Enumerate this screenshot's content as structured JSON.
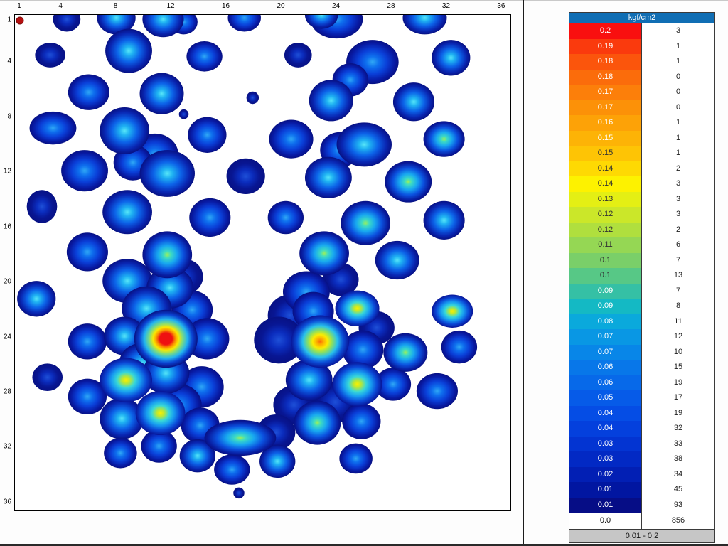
{
  "chart_data": {
    "type": "heatmap",
    "unit": "kgf/cm2",
    "pressure_range_label": "0.01 - 0.2",
    "grid_size": [
      36,
      36
    ],
    "x_ticks": [
      1,
      4,
      8,
      12,
      16,
      20,
      24,
      28,
      32,
      36
    ],
    "y_ticks": [
      1,
      4,
      8,
      12,
      16,
      20,
      24,
      28,
      32,
      36
    ],
    "levels": [
      {
        "value": "0.2",
        "count": "3",
        "bg": "#F90F0F",
        "fg": "#FFFFFF"
      },
      {
        "value": "0.19",
        "count": "1",
        "bg": "#FA3A0D",
        "fg": "#FFFFFF"
      },
      {
        "value": "0.18",
        "count": "1",
        "bg": "#FB550C",
        "fg": "#FFFFFF"
      },
      {
        "value": "0.18",
        "count": "0",
        "bg": "#FB6C0B",
        "fg": "#FFFFFF"
      },
      {
        "value": "0.17",
        "count": "0",
        "bg": "#FC7F0A",
        "fg": "#FFFFFF"
      },
      {
        "value": "0.17",
        "count": "0",
        "bg": "#FC9108",
        "fg": "#FFFFFF"
      },
      {
        "value": "0.16",
        "count": "1",
        "bg": "#FDA207",
        "fg": "#FFFFFF"
      },
      {
        "value": "0.15",
        "count": "1",
        "bg": "#FDB306",
        "fg": "#FFFFFF"
      },
      {
        "value": "0.15",
        "count": "1",
        "bg": "#FEC405",
        "fg": "#333333"
      },
      {
        "value": "0.14",
        "count": "2",
        "bg": "#FED903",
        "fg": "#333333"
      },
      {
        "value": "0.14",
        "count": "3",
        "bg": "#FDF200",
        "fg": "#333333"
      },
      {
        "value": "0.13",
        "count": "3",
        "bg": "#E4EF14",
        "fg": "#333333"
      },
      {
        "value": "0.12",
        "count": "3",
        "bg": "#CBE729",
        "fg": "#333333"
      },
      {
        "value": "0.12",
        "count": "2",
        "bg": "#B0DF3E",
        "fg": "#333333"
      },
      {
        "value": "0.11",
        "count": "6",
        "bg": "#95D754",
        "fg": "#333333"
      },
      {
        "value": "0.1",
        "count": "7",
        "bg": "#7ACF69",
        "fg": "#333333"
      },
      {
        "value": "0.1",
        "count": "13",
        "bg": "#57C886",
        "fg": "#333333"
      },
      {
        "value": "0.09",
        "count": "7",
        "bg": "#35C0A5",
        "fg": "#FFFFFF"
      },
      {
        "value": "0.09",
        "count": "8",
        "bg": "#14B9C4",
        "fg": "#FFFFFF"
      },
      {
        "value": "0.08",
        "count": "11",
        "bg": "#0AA9DC",
        "fg": "#FFFFFF"
      },
      {
        "value": "0.07",
        "count": "12",
        "bg": "#0997E4",
        "fg": "#FFFFFF"
      },
      {
        "value": "0.07",
        "count": "10",
        "bg": "#0886E8",
        "fg": "#FFFFFF"
      },
      {
        "value": "0.06",
        "count": "15",
        "bg": "#0877E9",
        "fg": "#FFFFFF"
      },
      {
        "value": "0.06",
        "count": "19",
        "bg": "#0769E9",
        "fg": "#FFFFFF"
      },
      {
        "value": "0.05",
        "count": "17",
        "bg": "#065BE8",
        "fg": "#FFFFFF"
      },
      {
        "value": "0.04",
        "count": "19",
        "bg": "#054DE5",
        "fg": "#FFFFFF"
      },
      {
        "value": "0.04",
        "count": "32",
        "bg": "#0440DD",
        "fg": "#FFFFFF"
      },
      {
        "value": "0.03",
        "count": "33",
        "bg": "#0334D2",
        "fg": "#FFFFFF"
      },
      {
        "value": "0.03",
        "count": "38",
        "bg": "#0229C4",
        "fg": "#FFFFFF"
      },
      {
        "value": "0.02",
        "count": "34",
        "bg": "#021FB4",
        "fg": "#FFFFFF"
      },
      {
        "value": "0.01",
        "count": "45",
        "bg": "#0116A1",
        "fg": "#FFFFFF"
      },
      {
        "value": "0.01",
        "count": "93",
        "bg": "#060D86",
        "fg": "#FFFFFF"
      },
      {
        "value": "0.0",
        "count": "856",
        "bg": "#FFFFFF",
        "fg": "#111111"
      }
    ],
    "marker_cell": {
      "c": 1,
      "r": 1,
      "color": "#B61010",
      "ring": "#7A0C0C"
    },
    "hotspots": [
      {
        "c": 4.4,
        "r": 0.9,
        "rx": 1.0,
        "ry": 0.9,
        "t": "low"
      },
      {
        "c": 8.0,
        "r": 0.8,
        "rx": 1.4,
        "ry": 1.2,
        "t": "cyan"
      },
      {
        "c": 11.4,
        "r": 0.9,
        "rx": 1.5,
        "ry": 1.3,
        "t": "cyan"
      },
      {
        "c": 12.9,
        "r": 1.1,
        "rx": 1.0,
        "ry": 0.9,
        "t": "blue"
      },
      {
        "c": 17.3,
        "r": 0.8,
        "rx": 1.2,
        "ry": 1.0,
        "t": "blue"
      },
      {
        "c": 24.0,
        "r": 0.9,
        "rx": 1.9,
        "ry": 1.4,
        "t": "blue"
      },
      {
        "c": 22.9,
        "r": 0.6,
        "rx": 1.2,
        "ry": 1.0,
        "t": "cyan"
      },
      {
        "c": 30.4,
        "r": 0.8,
        "rx": 1.6,
        "ry": 1.2,
        "t": "cyan"
      },
      {
        "c": 3.2,
        "r": 3.5,
        "rx": 1.1,
        "ry": 0.9,
        "t": "low"
      },
      {
        "c": 8.9,
        "r": 3.2,
        "rx": 1.7,
        "ry": 1.6,
        "t": "cyan"
      },
      {
        "c": 14.4,
        "r": 3.6,
        "rx": 1.3,
        "ry": 1.1,
        "t": "blue"
      },
      {
        "c": 21.2,
        "r": 3.5,
        "rx": 1.0,
        "ry": 0.9,
        "t": "low"
      },
      {
        "c": 26.6,
        "r": 4.0,
        "rx": 1.9,
        "ry": 1.6,
        "t": "blue"
      },
      {
        "c": 25.0,
        "r": 5.3,
        "rx": 1.3,
        "ry": 1.2,
        "t": "blue"
      },
      {
        "c": 32.3,
        "r": 3.7,
        "rx": 1.4,
        "ry": 1.3,
        "t": "cyan"
      },
      {
        "c": 6.0,
        "r": 6.2,
        "rx": 1.5,
        "ry": 1.3,
        "t": "blue"
      },
      {
        "c": 11.3,
        "r": 6.3,
        "rx": 1.6,
        "ry": 1.5,
        "t": "cyan"
      },
      {
        "c": 17.9,
        "r": 6.6,
        "rx": 0.45,
        "ry": 0.45,
        "t": "low"
      },
      {
        "c": 23.6,
        "r": 6.8,
        "rx": 1.6,
        "ry": 1.5,
        "t": "cyan"
      },
      {
        "c": 29.6,
        "r": 6.9,
        "rx": 1.5,
        "ry": 1.4,
        "t": "cyan"
      },
      {
        "c": 12.9,
        "r": 7.8,
        "rx": 0.35,
        "ry": 0.35,
        "t": "low"
      },
      {
        "c": 3.4,
        "r": 8.8,
        "rx": 1.7,
        "ry": 1.2,
        "t": "blue"
      },
      {
        "c": 8.6,
        "r": 9.0,
        "rx": 1.8,
        "ry": 1.7,
        "t": "cyan"
      },
      {
        "c": 10.8,
        "r": 10.7,
        "rx": 1.7,
        "ry": 1.5,
        "t": "blue"
      },
      {
        "c": 14.6,
        "r": 9.3,
        "rx": 1.4,
        "ry": 1.3,
        "t": "blue"
      },
      {
        "c": 20.7,
        "r": 9.6,
        "rx": 1.6,
        "ry": 1.4,
        "t": "blue"
      },
      {
        "c": 24.2,
        "r": 10.4,
        "rx": 1.4,
        "ry": 1.3,
        "t": "blue"
      },
      {
        "c": 26.0,
        "r": 10.0,
        "rx": 2.0,
        "ry": 1.6,
        "t": "cyan"
      },
      {
        "c": 31.8,
        "r": 9.6,
        "rx": 1.5,
        "ry": 1.3,
        "t": "green"
      },
      {
        "c": 5.7,
        "r": 11.9,
        "rx": 1.7,
        "ry": 1.5,
        "t": "blue"
      },
      {
        "c": 9.2,
        "r": 11.3,
        "rx": 1.4,
        "ry": 1.3,
        "t": "blue"
      },
      {
        "c": 11.7,
        "r": 12.1,
        "rx": 2.0,
        "ry": 1.7,
        "t": "cyan"
      },
      {
        "c": 17.4,
        "r": 12.3,
        "rx": 1.4,
        "ry": 1.3,
        "t": "low"
      },
      {
        "c": 23.4,
        "r": 12.4,
        "rx": 1.7,
        "ry": 1.5,
        "t": "cyan"
      },
      {
        "c": 29.2,
        "r": 12.7,
        "rx": 1.7,
        "ry": 1.5,
        "t": "green"
      },
      {
        "c": 2.6,
        "r": 14.5,
        "rx": 1.1,
        "ry": 1.2,
        "t": "low"
      },
      {
        "c": 8.8,
        "r": 14.9,
        "rx": 1.8,
        "ry": 1.6,
        "t": "cyan"
      },
      {
        "c": 14.8,
        "r": 15.3,
        "rx": 1.5,
        "ry": 1.4,
        "t": "blue"
      },
      {
        "c": 20.3,
        "r": 15.3,
        "rx": 1.3,
        "ry": 1.2,
        "t": "blue"
      },
      {
        "c": 26.1,
        "r": 15.7,
        "rx": 1.8,
        "ry": 1.6,
        "t": "green"
      },
      {
        "c": 31.8,
        "r": 15.5,
        "rx": 1.5,
        "ry": 1.4,
        "t": "cyan"
      },
      {
        "c": 5.9,
        "r": 17.8,
        "rx": 1.5,
        "ry": 1.4,
        "t": "blue"
      },
      {
        "c": 11.7,
        "r": 18.0,
        "rx": 1.8,
        "ry": 1.7,
        "t": "green"
      },
      {
        "c": 8.8,
        "r": 19.9,
        "rx": 1.8,
        "ry": 1.6,
        "t": "cyan"
      },
      {
        "c": 23.1,
        "r": 17.9,
        "rx": 1.8,
        "ry": 1.6,
        "t": "green"
      },
      {
        "c": 28.4,
        "r": 18.4,
        "rx": 1.6,
        "ry": 1.4,
        "t": "cyan"
      },
      {
        "c": 12.9,
        "r": 19.6,
        "rx": 1.4,
        "ry": 1.3,
        "t": "low"
      },
      {
        "c": 2.2,
        "r": 21.2,
        "rx": 1.4,
        "ry": 1.3,
        "t": "cyan"
      },
      {
        "c": 11.9,
        "r": 20.4,
        "rx": 1.7,
        "ry": 1.5,
        "t": "cyan"
      },
      {
        "c": 10.2,
        "r": 21.9,
        "rx": 1.8,
        "ry": 1.6,
        "t": "cyan"
      },
      {
        "c": 13.5,
        "r": 22.0,
        "rx": 1.5,
        "ry": 1.4,
        "t": "blue"
      },
      {
        "c": 21.8,
        "r": 20.7,
        "rx": 1.7,
        "ry": 1.5,
        "t": "blue"
      },
      {
        "c": 20.6,
        "r": 22.4,
        "rx": 1.6,
        "ry": 1.5,
        "t": "low"
      },
      {
        "c": 22.3,
        "r": 22.1,
        "rx": 1.5,
        "ry": 1.4,
        "t": "blue"
      },
      {
        "c": 25.5,
        "r": 21.9,
        "rx": 1.6,
        "ry": 1.3,
        "t": "yellow"
      },
      {
        "c": 32.4,
        "r": 22.1,
        "rx": 1.5,
        "ry": 1.2,
        "t": "yellow"
      },
      {
        "c": 24.3,
        "r": 19.8,
        "rx": 1.3,
        "ry": 1.2,
        "t": "low"
      },
      {
        "c": 11.6,
        "r": 24.1,
        "rx": 2.3,
        "ry": 2.1,
        "t": "red"
      },
      {
        "c": 8.6,
        "r": 23.9,
        "rx": 1.5,
        "ry": 1.4,
        "t": "cyan"
      },
      {
        "c": 5.9,
        "r": 24.3,
        "rx": 1.4,
        "ry": 1.3,
        "t": "blue"
      },
      {
        "c": 14.6,
        "r": 24.1,
        "rx": 1.6,
        "ry": 1.5,
        "t": "blue"
      },
      {
        "c": 9.9,
        "r": 25.9,
        "rx": 1.7,
        "ry": 1.5,
        "t": "cyan"
      },
      {
        "c": 22.8,
        "r": 24.3,
        "rx": 2.1,
        "ry": 1.9,
        "t": "orange"
      },
      {
        "c": 19.8,
        "r": 24.2,
        "rx": 1.8,
        "ry": 1.7,
        "t": "low"
      },
      {
        "c": 25.9,
        "r": 24.9,
        "rx": 1.5,
        "ry": 1.4,
        "t": "blue"
      },
      {
        "c": 29.0,
        "r": 25.1,
        "rx": 1.6,
        "ry": 1.4,
        "t": "green"
      },
      {
        "c": 32.9,
        "r": 24.7,
        "rx": 1.3,
        "ry": 1.2,
        "t": "blue"
      },
      {
        "c": 26.9,
        "r": 23.3,
        "rx": 1.3,
        "ry": 1.2,
        "t": "low"
      },
      {
        "c": 3.0,
        "r": 26.9,
        "rx": 1.1,
        "ry": 1.0,
        "t": "low"
      },
      {
        "c": 8.7,
        "r": 27.1,
        "rx": 1.9,
        "ry": 1.6,
        "t": "yellow"
      },
      {
        "c": 11.6,
        "r": 26.6,
        "rx": 1.7,
        "ry": 1.5,
        "t": "cyan"
      },
      {
        "c": 5.9,
        "r": 28.3,
        "rx": 1.4,
        "ry": 1.3,
        "t": "blue"
      },
      {
        "c": 14.2,
        "r": 27.6,
        "rx": 1.6,
        "ry": 1.5,
        "t": "blue"
      },
      {
        "c": 12.6,
        "r": 28.9,
        "rx": 1.6,
        "ry": 1.5,
        "t": "blue"
      },
      {
        "c": 25.5,
        "r": 27.4,
        "rx": 1.8,
        "ry": 1.6,
        "t": "yellow"
      },
      {
        "c": 22.0,
        "r": 27.1,
        "rx": 1.7,
        "ry": 1.5,
        "t": "cyan"
      },
      {
        "c": 28.1,
        "r": 27.4,
        "rx": 1.3,
        "ry": 1.2,
        "t": "blue"
      },
      {
        "c": 31.3,
        "r": 27.9,
        "rx": 1.5,
        "ry": 1.3,
        "t": "blue"
      },
      {
        "c": 20.9,
        "r": 28.9,
        "rx": 1.5,
        "ry": 1.4,
        "t": "low"
      },
      {
        "c": 23.9,
        "r": 28.7,
        "rx": 1.6,
        "ry": 1.5,
        "t": "low"
      },
      {
        "c": 11.2,
        "r": 29.5,
        "rx": 1.8,
        "ry": 1.6,
        "t": "yellow"
      },
      {
        "c": 8.4,
        "r": 29.9,
        "rx": 1.6,
        "ry": 1.5,
        "t": "cyan"
      },
      {
        "c": 14.1,
        "r": 30.4,
        "rx": 1.4,
        "ry": 1.3,
        "t": "blue"
      },
      {
        "c": 22.6,
        "r": 30.2,
        "rx": 1.7,
        "ry": 1.6,
        "t": "green"
      },
      {
        "c": 25.8,
        "r": 30.1,
        "rx": 1.4,
        "ry": 1.3,
        "t": "blue"
      },
      {
        "c": 17.0,
        "r": 31.3,
        "rx": 2.6,
        "ry": 1.3,
        "t": "green"
      },
      {
        "c": 19.6,
        "r": 30.9,
        "rx": 1.4,
        "ry": 1.3,
        "t": "low"
      },
      {
        "c": 11.1,
        "r": 31.9,
        "rx": 1.3,
        "ry": 1.2,
        "t": "blue"
      },
      {
        "c": 13.9,
        "r": 32.6,
        "rx": 1.3,
        "ry": 1.2,
        "t": "cyan"
      },
      {
        "c": 19.7,
        "r": 33.0,
        "rx": 1.3,
        "ry": 1.2,
        "t": "cyan"
      },
      {
        "c": 8.3,
        "r": 32.4,
        "rx": 1.2,
        "ry": 1.1,
        "t": "blue"
      },
      {
        "c": 25.4,
        "r": 32.8,
        "rx": 1.2,
        "ry": 1.1,
        "t": "blue"
      },
      {
        "c": 16.4,
        "r": 33.6,
        "rx": 1.3,
        "ry": 1.1,
        "t": "blue"
      },
      {
        "c": 16.9,
        "r": 35.3,
        "rx": 0.4,
        "ry": 0.4,
        "t": "low"
      }
    ]
  }
}
